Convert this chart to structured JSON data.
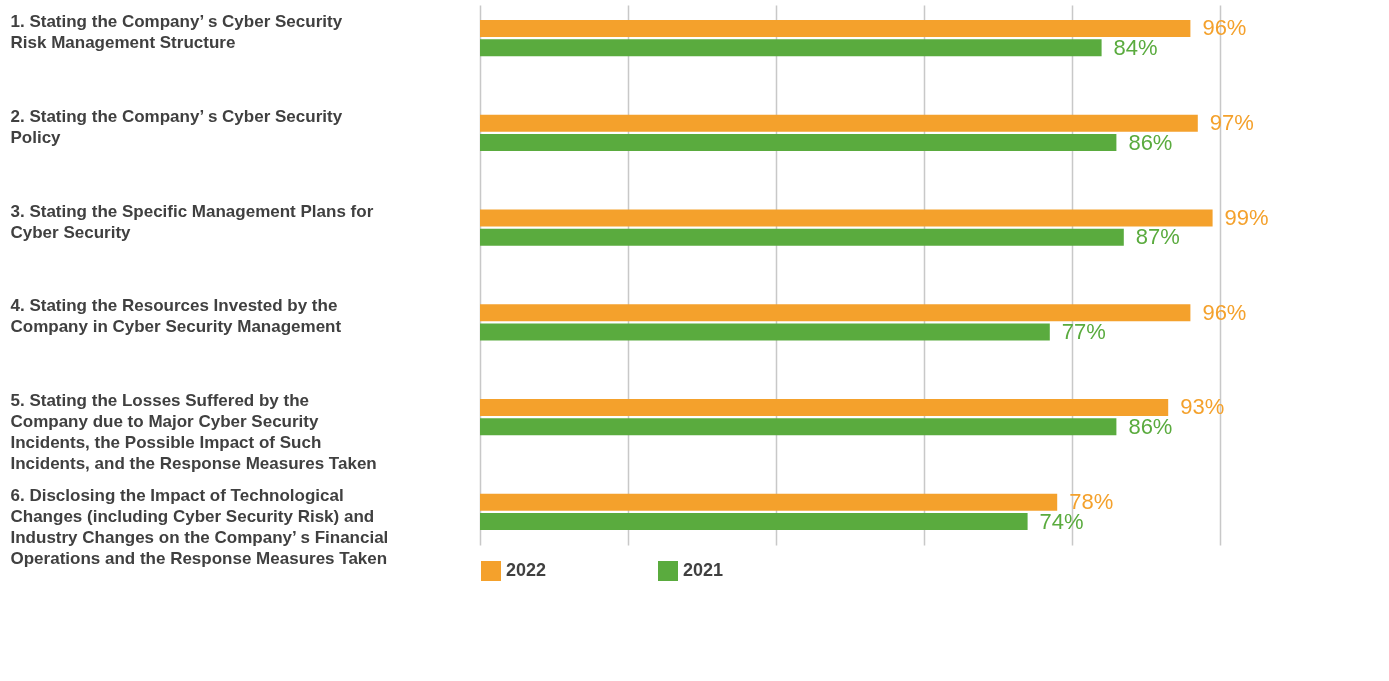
{
  "chart_data": {
    "type": "bar",
    "orientation": "horizontal",
    "categories": [
      "1. Stating the Company’ s Cyber Security Risk Management Structure",
      "2. Stating the Company’ s Cyber Security Policy",
      "3. Stating the Specific Management Plans for Cyber Security",
      "4. Stating the Resources Invested by the Company in Cyber Security Management",
      "5. Stating the Losses Suffered by the Company due to Major Cyber Security Incidents, the Possible Impact of Such Incidents, and the Response Measures Taken",
      "6. Disclosing the Impact of Technological Changes (including Cyber Security Risk) and Industry Changes on the Company’ s Financial Operations and the Response Measures Taken"
    ],
    "series": [
      {
        "name": "2022",
        "color": "#f4a12c",
        "values": [
          96,
          97,
          99,
          96,
          93,
          78
        ],
        "value_labels": [
          "96%",
          "97%",
          "99%",
          "96%",
          "93%",
          "78%"
        ]
      },
      {
        "name": "2021",
        "color": "#5aab3e",
        "values": [
          84,
          86,
          87,
          77,
          86,
          74
        ],
        "value_labels": [
          "84%",
          "86%",
          "87%",
          "77%",
          "86%",
          "74%"
        ]
      }
    ],
    "xlim": [
      0,
      100
    ],
    "xticks": [
      {
        "value": 0,
        "label": null
      },
      {
        "value": 20,
        "label": null
      },
      {
        "value": 40,
        "label": null
      },
      {
        "value": 60,
        "label": null
      },
      {
        "value": 80,
        "label": null
      },
      {
        "value": 100,
        "label": null
      }
    ],
    "grid": "x",
    "legend": "bottom left"
  }
}
